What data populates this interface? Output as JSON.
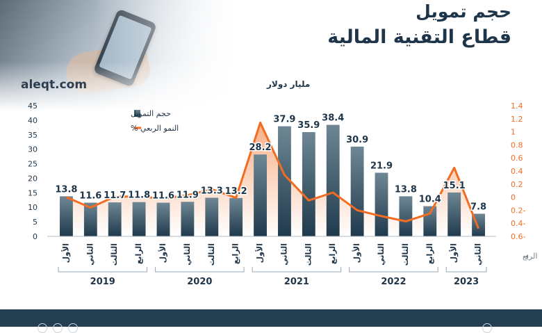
{
  "header": {
    "title_line1": "حجم تمويل",
    "title_line2": "قطاع التقنية المالية",
    "site": "aleqt.com",
    "unit": "مليار دولار"
  },
  "colors": {
    "bar_top": "#6f8794",
    "bar_bottom": "#1f3a4d",
    "line": "#f26c21",
    "left_axis": "#1e3448",
    "right_axis": "#f26c21",
    "footer": "#253f52"
  },
  "chart_data": {
    "type": "bar+line",
    "quarter_axis_label": "الربع",
    "quarters": [
      "الأول",
      "الثاني",
      "الثالث",
      "الرابع",
      "الأول",
      "الثاني",
      "الثالث",
      "الرابع",
      "الأول",
      "الثاني",
      "الثالث",
      "الرابع",
      "الأول",
      "الثاني",
      "الثالث",
      "الرابع",
      "الأول",
      "الثاني"
    ],
    "years": [
      {
        "label": "2019",
        "start": 0,
        "end": 3
      },
      {
        "label": "2020",
        "start": 4,
        "end": 7
      },
      {
        "label": "2021",
        "start": 8,
        "end": 11
      },
      {
        "label": "2022",
        "start": 12,
        "end": 15
      },
      {
        "label": "2023",
        "start": 16,
        "end": 17
      }
    ],
    "series": [
      {
        "name": "حجم التمويل",
        "type": "bar",
        "axis": "left",
        "values": [
          13.8,
          11.6,
          11.7,
          11.8,
          11.6,
          11.9,
          13.3,
          13.2,
          28.2,
          37.9,
          35.9,
          38.4,
          30.9,
          21.9,
          13.8,
          10.4,
          15.1,
          7.8
        ],
        "labels": [
          "13.8",
          "11.6",
          "11.7",
          "11.8",
          "11.6",
          "11.9",
          "13.3",
          "13.2",
          "28.2",
          "37.9",
          "35.9",
          "38.4",
          "30.9",
          "21.9",
          "13.8",
          "10.4",
          "15.1",
          "7.8"
        ]
      },
      {
        "name": "النمو الربعي %",
        "type": "line",
        "axis": "right",
        "values": [
          0.0,
          -0.16,
          0.01,
          0.01,
          -0.02,
          0.03,
          0.12,
          -0.01,
          1.14,
          0.34,
          -0.05,
          0.07,
          -0.2,
          -0.29,
          -0.37,
          -0.25,
          0.45,
          -0.48
        ]
      }
    ],
    "left_axis": {
      "min": 0,
      "max": 45,
      "step": 5,
      "ticks": [
        "0",
        "5",
        "10",
        "15",
        "20",
        "25",
        "30",
        "35",
        "40",
        "45"
      ]
    },
    "right_axis": {
      "min": -0.6,
      "max": 1.4,
      "step": 0.2,
      "ticks": [
        "-0.6",
        "-0.4",
        "-0.2",
        "0",
        "0.2",
        "0.4",
        "0.6",
        "0.8",
        "1",
        "1.2",
        "1.4"
      ],
      "tick_labels": [
        "0.6-",
        "0.4-",
        "0.2-",
        "0",
        "0.2",
        "0.4",
        "0.6",
        "0.8",
        "1",
        "1.2",
        "1.4"
      ]
    },
    "legend_position": "top-left",
    "grid": false
  }
}
